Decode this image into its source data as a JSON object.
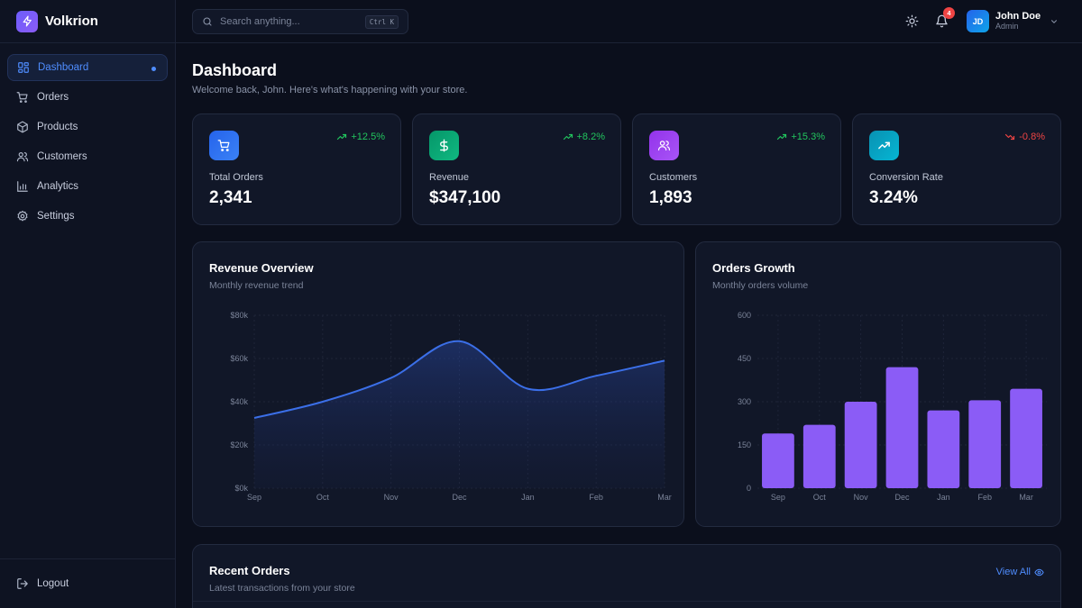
{
  "brand": {
    "name": "Volkrion"
  },
  "sidebar": {
    "items": [
      {
        "label": "Dashboard",
        "icon": "grid-icon",
        "active": true
      },
      {
        "label": "Orders",
        "icon": "cart-icon"
      },
      {
        "label": "Products",
        "icon": "box-icon"
      },
      {
        "label": "Customers",
        "icon": "users-icon"
      },
      {
        "label": "Analytics",
        "icon": "bar-chart-icon"
      },
      {
        "label": "Settings",
        "icon": "gear-icon"
      }
    ],
    "logout_label": "Logout"
  },
  "topbar": {
    "search_placeholder": "Search anything...",
    "search_shortcut": "Ctrl K",
    "notification_count": "4",
    "user": {
      "initials": "JD",
      "name": "John Doe",
      "role": "Admin"
    }
  },
  "page": {
    "title": "Dashboard",
    "subtitle": "Welcome back, John. Here's what's happening with your store."
  },
  "stats": [
    {
      "label": "Total Orders",
      "value": "2,341",
      "change": "+12.5%",
      "trend": "up",
      "icon": "cart-icon",
      "color_from": "#2563eb",
      "color_to": "#3b82f6"
    },
    {
      "label": "Revenue",
      "value": "$347,100",
      "change": "+8.2%",
      "trend": "up",
      "icon": "dollar-icon",
      "color_from": "#059669",
      "color_to": "#10b981"
    },
    {
      "label": "Customers",
      "value": "1,893",
      "change": "+15.3%",
      "trend": "up",
      "icon": "users-icon",
      "color_from": "#9333ea",
      "color_to": "#a855f7"
    },
    {
      "label": "Conversion Rate",
      "value": "3.24%",
      "change": "-0.8%",
      "trend": "down",
      "icon": "trend-up-icon",
      "color_from": "#0891b2",
      "color_to": "#06b6d4"
    }
  ],
  "colors": {
    "up": "#22c55e",
    "down": "#ef4444",
    "accent": "#4f8dff",
    "line": "#3b6fe8",
    "bar": "#8b5cf6"
  },
  "revenue_panel": {
    "title": "Revenue Overview",
    "subtitle": "Monthly revenue trend"
  },
  "orders_panel": {
    "title": "Orders Growth",
    "subtitle": "Monthly orders volume"
  },
  "recent_panel": {
    "title": "Recent Orders",
    "subtitle": "Latest transactions from your store",
    "view_all": "View All"
  },
  "chart_data": [
    {
      "type": "area",
      "categories": [
        "Sep",
        "Oct",
        "Nov",
        "Dec",
        "Jan",
        "Feb",
        "Mar"
      ],
      "values": [
        32500,
        40000,
        51000,
        68000,
        46000,
        52000,
        59000
      ],
      "ylim": [
        0,
        80000
      ],
      "yticks": [
        "$0k",
        "$20k",
        "$40k",
        "$60k",
        "$80k"
      ],
      "grid": true
    },
    {
      "type": "bar",
      "categories": [
        "Sep",
        "Oct",
        "Nov",
        "Dec",
        "Jan",
        "Feb",
        "Mar"
      ],
      "values": [
        190,
        220,
        300,
        420,
        270,
        305,
        345
      ],
      "ylim": [
        0,
        600
      ],
      "yticks": [
        "0",
        "150",
        "300",
        "450",
        "600"
      ],
      "grid": true
    }
  ]
}
